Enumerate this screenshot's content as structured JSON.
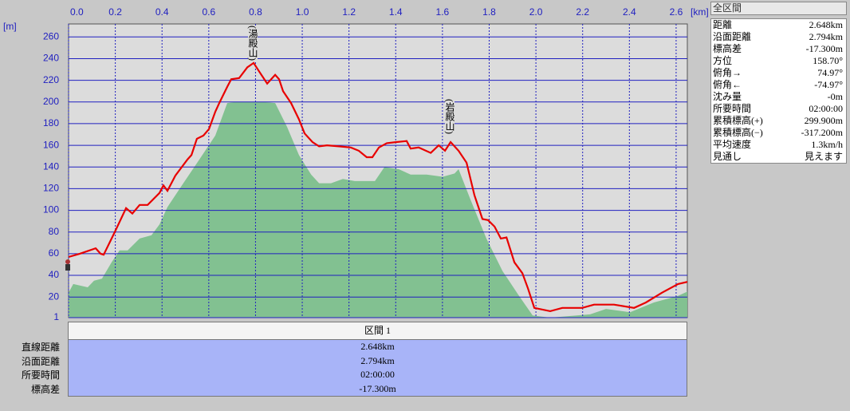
{
  "chart_data": {
    "type": "line",
    "x_label": "[km]",
    "y_label": "[m]",
    "xlim": [
      0,
      2.648
    ],
    "xticks": [
      {
        "value": 0,
        "label": "0.0"
      },
      0.2,
      0.4,
      0.6,
      0.8,
      {
        "value": 1,
        "label": "1.0"
      },
      1.2,
      1.4,
      1.6,
      1.8,
      {
        "value": 2,
        "label": "2.0"
      },
      2.2,
      2.4,
      2.6
    ],
    "ylim": [
      1,
      272
    ],
    "yticks": [
      1,
      20,
      40,
      60,
      80,
      100,
      120,
      140,
      160,
      180,
      200,
      220,
      240,
      260
    ],
    "grid": true,
    "series": [
      {
        "color": "#7cbf8c",
        "fill": true,
        "x": [
          0,
          0.02,
          0.082,
          0.109,
          0.143,
          0.184,
          0.218,
          0.253,
          0.304,
          0.355,
          0.389,
          0.423,
          0.491,
          0.56,
          0.628,
          0.679,
          0.713,
          0.782,
          0.833,
          0.884,
          0.935,
          0.986,
          1.038,
          1.072,
          1.123,
          1.174,
          1.225,
          1.311,
          1.352,
          1.413,
          1.464,
          1.532,
          1.601,
          1.652,
          1.669,
          1.72,
          1.788,
          1.857,
          1.925,
          1.986,
          2.061,
          2.232,
          2.3,
          2.403,
          2.505,
          2.608,
          2.648
        ],
        "values": [
          24,
          32,
          29,
          35,
          37,
          52,
          63,
          63,
          74,
          77,
          87,
          103,
          125,
          147,
          169,
          199,
          200,
          200,
          200,
          199,
          177,
          151,
          133,
          125,
          125,
          129,
          127,
          127,
          140,
          138,
          133,
          133,
          131,
          134,
          138,
          110,
          74,
          44,
          22,
          3,
          1,
          4,
          9,
          6,
          15,
          21,
          25
        ]
      },
      {
        "color": "#e80000",
        "fill": false,
        "x": [
          0,
          0.048,
          0.116,
          0.137,
          0.15,
          0.2,
          0.246,
          0.273,
          0.304,
          0.338,
          0.389,
          0.406,
          0.423,
          0.457,
          0.509,
          0.526,
          0.549,
          0.577,
          0.601,
          0.628,
          0.645,
          0.679,
          0.696,
          0.73,
          0.765,
          0.792,
          0.816,
          0.85,
          0.867,
          0.884,
          0.901,
          0.918,
          0.952,
          0.986,
          1.01,
          1.044,
          1.072,
          1.106,
          1.157,
          1.208,
          1.242,
          1.276,
          1.3,
          1.328,
          1.362,
          1.403,
          1.447,
          1.464,
          1.498,
          1.55,
          1.584,
          1.611,
          1.635,
          1.669,
          1.703,
          1.737,
          1.771,
          1.795,
          1.823,
          1.85,
          1.874,
          1.908,
          1.942,
          1.966,
          1.993,
          2.061,
          2.113,
          2.198,
          2.249,
          2.334,
          2.42,
          2.471,
          2.539,
          2.608,
          2.648
        ],
        "values": [
          57,
          60,
          65,
          60,
          59,
          81,
          102,
          97,
          105,
          105,
          116,
          123,
          118,
          132,
          147,
          151,
          166,
          169,
          175,
          191,
          199,
          214,
          221,
          222,
          232,
          236,
          228,
          217,
          221,
          225,
          221,
          210,
          199,
          184,
          171,
          163,
          159,
          160,
          159,
          158,
          155,
          149,
          149,
          158,
          162,
          163,
          164,
          157,
          158,
          153,
          160,
          155,
          163,
          155,
          144,
          114,
          92,
          91,
          85,
          74,
          75,
          52,
          42,
          28,
          10,
          7,
          10,
          10,
          13,
          13,
          10,
          15,
          24,
          32,
          34
        ]
      }
    ],
    "annotations": [
      {
        "text": "(湯殿山)"
      },
      {
        "text": "(岩殿山)"
      }
    ]
  },
  "summary_panel": {
    "title": "全区間",
    "rows": [
      [
        "距離",
        "2.648km"
      ],
      [
        "沿面距離",
        "2.794km"
      ],
      [
        "標高差",
        "-17.300m"
      ],
      [
        "方位",
        "158.70°"
      ],
      [
        "俯角→",
        "74.97°"
      ],
      [
        "俯角←",
        "-74.97°"
      ],
      [
        "沈み量",
        "-0m"
      ],
      [
        "所要時間",
        "02:00:00"
      ],
      [
        "累積標高(+)",
        "299.900m"
      ],
      [
        "累積標高(−)",
        "-317.200m"
      ],
      [
        "平均速度",
        "1.3km/h"
      ],
      [
        "見通し",
        "見えます"
      ]
    ]
  },
  "section_table": {
    "header": "区間 1",
    "rows": [
      [
        "直線距離",
        "2.648km"
      ],
      [
        "沿面距離",
        "2.794km"
      ],
      [
        "所要時間",
        "02:00:00"
      ],
      [
        "標高差",
        "-17.300m"
      ]
    ]
  }
}
